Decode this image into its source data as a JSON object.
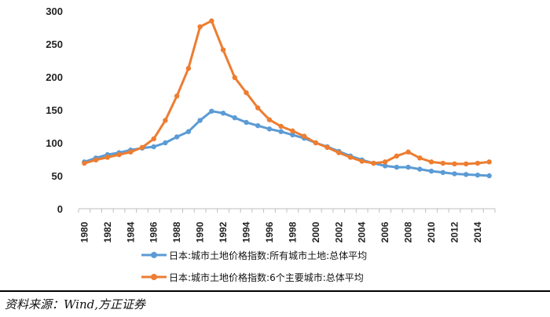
{
  "chart_data": {
    "type": "line",
    "title": "",
    "xlabel": "",
    "ylabel": "",
    "ylim": [
      0,
      300
    ],
    "yticks": [
      0,
      50,
      100,
      150,
      200,
      250,
      300
    ],
    "xticks": [
      1980,
      1982,
      1984,
      1986,
      1988,
      1990,
      1992,
      1994,
      1996,
      1998,
      2000,
      2002,
      2004,
      2006,
      2008,
      2010,
      2012,
      2014
    ],
    "x": [
      1980,
      1981,
      1982,
      1983,
      1984,
      1985,
      1986,
      1987,
      1988,
      1989,
      1990,
      1991,
      1992,
      1993,
      1994,
      1995,
      1996,
      1997,
      1998,
      1999,
      2000,
      2001,
      2002,
      2003,
      2004,
      2005,
      2006,
      2007,
      2008,
      2009,
      2010,
      2011,
      2012,
      2013,
      2014,
      2015
    ],
    "series": [
      {
        "name": "日本:城市土地价格指数:所有城市土地:总体平均",
        "color": "#5b9bd5",
        "values": [
          71,
          77,
          82,
          85,
          89,
          92,
          94,
          100,
          109,
          117,
          134,
          148,
          145,
          138,
          131,
          126,
          121,
          117,
          112,
          107,
          100,
          94,
          87,
          80,
          74,
          69,
          65,
          63,
          63,
          60,
          57,
          55,
          53,
          52,
          51,
          50
        ]
      },
      {
        "name": "日本:城市土地价格指数:6个主要城市:总体平均",
        "color": "#ed7d31",
        "values": [
          69,
          74,
          78,
          82,
          86,
          93,
          106,
          134,
          171,
          213,
          276,
          285,
          241,
          199,
          176,
          153,
          135,
          125,
          118,
          110,
          100,
          93,
          85,
          78,
          72,
          69,
          71,
          80,
          86,
          77,
          71,
          69,
          68,
          68,
          69,
          71
        ]
      }
    ],
    "legend_position": "bottom"
  },
  "source_text": "资料来源：Wind,方正证券"
}
